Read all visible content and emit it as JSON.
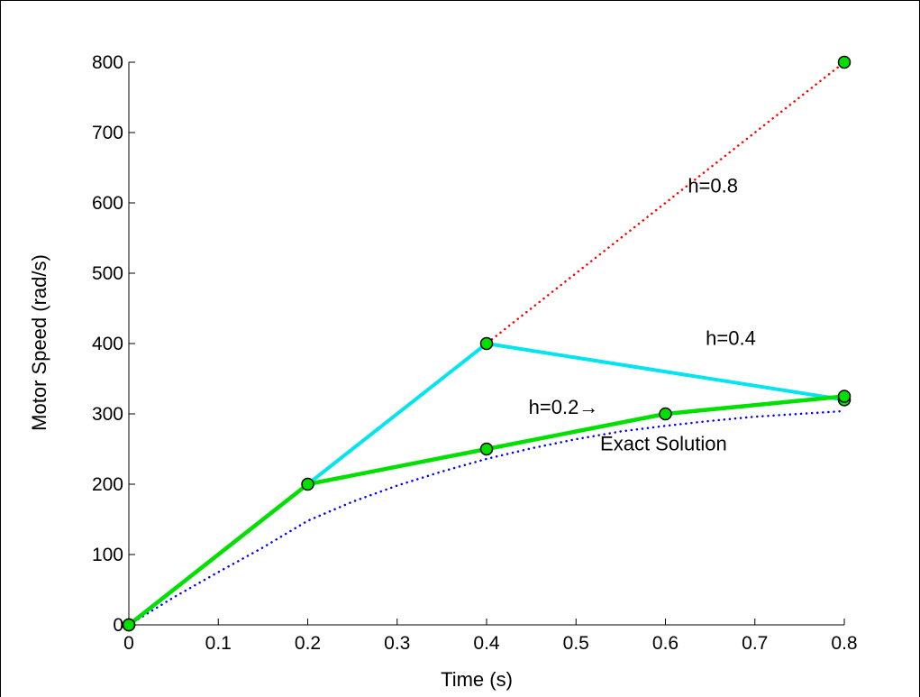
{
  "chart_data": {
    "type": "line",
    "xlabel": "Time (s)",
    "ylabel": "Motor Speed (rad/s)",
    "xlim": [
      0,
      0.8
    ],
    "ylim": [
      0,
      800
    ],
    "xticks": [
      "0",
      "0.1",
      "0.2",
      "0.3",
      "0.4",
      "0.5",
      "0.6",
      "0.7",
      "0.8"
    ],
    "yticks": [
      "0",
      "100",
      "200",
      "300",
      "400",
      "500",
      "600",
      "700",
      "800"
    ],
    "grid": false,
    "series": [
      {
        "key": "exact",
        "color": "#0000ff",
        "style": "dotted",
        "x": [
          0,
          0.05,
          0.1,
          0.15,
          0.2,
          0.25,
          0.3,
          0.35,
          0.4,
          0.45,
          0.5,
          0.55,
          0.6,
          0.65,
          0.7,
          0.75,
          0.8
        ],
        "y": [
          0,
          39,
          75,
          110,
          148,
          175,
          198,
          218,
          236,
          251,
          264,
          275,
          283,
          290,
          296,
          300,
          304
        ]
      },
      {
        "key": "h08",
        "color": "#ff0000",
        "style": "dotted",
        "x": [
          0,
          0.8
        ],
        "y": [
          0,
          800
        ],
        "markers": true
      },
      {
        "key": "h04",
        "color": "#00e5ee",
        "style": "solid",
        "x": [
          0,
          0.4,
          0.8
        ],
        "y": [
          0,
          400,
          320
        ],
        "markers": true
      },
      {
        "key": "h02",
        "color": "#00e000",
        "style": "solid",
        "x": [
          0,
          0.2,
          0.4,
          0.6,
          0.8
        ],
        "y": [
          0,
          200,
          250,
          300,
          325
        ],
        "markers": true
      }
    ],
    "annotations": [
      {
        "text": "h=0.8",
        "x": 0.625,
        "y": 615
      },
      {
        "text": "h=0.4",
        "x": 0.645,
        "y": 398
      },
      {
        "text": "h=0.2→",
        "x": 0.447,
        "y": 300
      },
      {
        "text": "Exact Solution",
        "x": 0.527,
        "y": 248
      }
    ]
  }
}
